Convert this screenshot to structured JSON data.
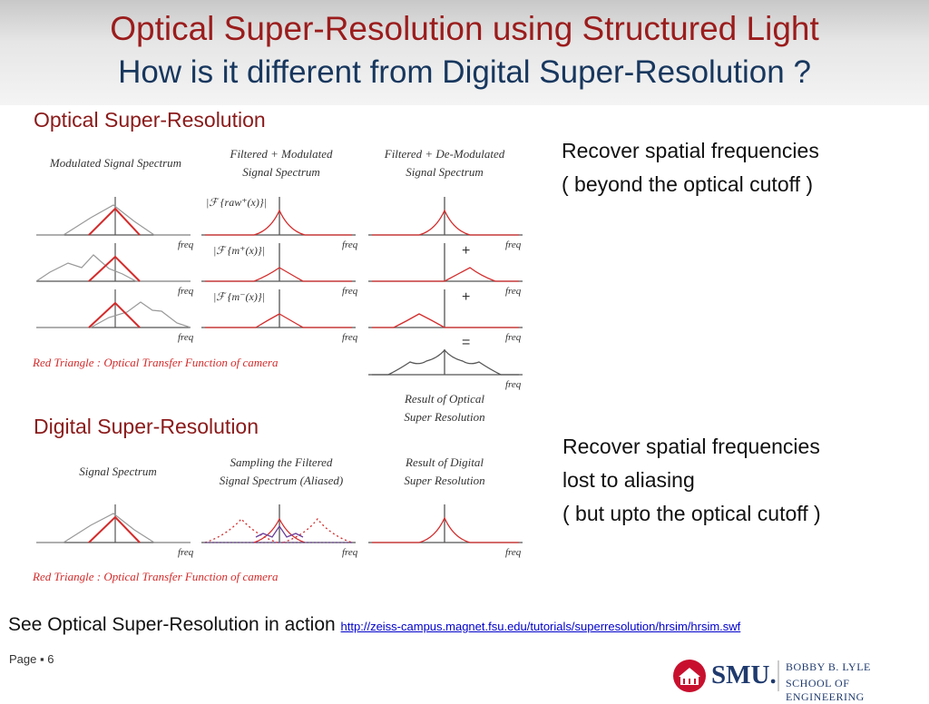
{
  "slide": {
    "title_line1": "Optical Super-Resolution using Structured Light",
    "title_line2": "How is it different from Digital Super-Resolution ?",
    "page_label": "Page ▪ 6"
  },
  "optical": {
    "heading": "Optical Super-Resolution",
    "col1": "Modulated Signal Spectrum",
    "col2a": "Filtered + Modulated",
    "col2b": "Signal Spectrum",
    "col3a": "Filtered + De-Modulated",
    "col3b": "Signal Spectrum",
    "lab_raw": "|ℱ {raw⁺(x)}|",
    "lab_mplus": "|ℱ {m⁺(x)}|",
    "lab_mminus": "|ℱ {m⁻(x)}|",
    "caption": "Red Triangle : Optical Transfer Function of camera",
    "result_a": "Result of Optical",
    "result_b": "Super Resolution",
    "note_line1": "Recover spatial frequencies",
    "note_line2": "( beyond the optical cutoff )"
  },
  "digital": {
    "heading": "Digital Super-Resolution",
    "col1": "Signal Spectrum",
    "col2a": "Sampling the Filtered",
    "col2b": "Signal Spectrum (Aliased)",
    "col3a": "Result of Digital",
    "col3b": "Super Resolution",
    "caption": "Red Triangle : Optical Transfer Function of camera",
    "note_line1": "Recover spatial frequencies",
    "note_line2": "lost to aliasing",
    "note_line3": "( but upto the optical cutoff )"
  },
  "axis": {
    "freq": "freq"
  },
  "ops": {
    "plus": "+",
    "equals": "="
  },
  "footer": {
    "text": "See Optical Super-Resolution in action",
    "link": "http://zeiss-campus.magnet.fsu.edu/tutorials/superresolution/hrsim/hrsim.swf"
  },
  "logo": {
    "name": "SMU.",
    "school_line1": "BOBBY B. LYLE",
    "school_line2": "SCHOOL OF ENGINEERING"
  },
  "colors": {
    "accent_red": "#d42b2b",
    "title_red": "#9b1c1c",
    "title_blue": "#17375e",
    "link": "#0000cc"
  }
}
